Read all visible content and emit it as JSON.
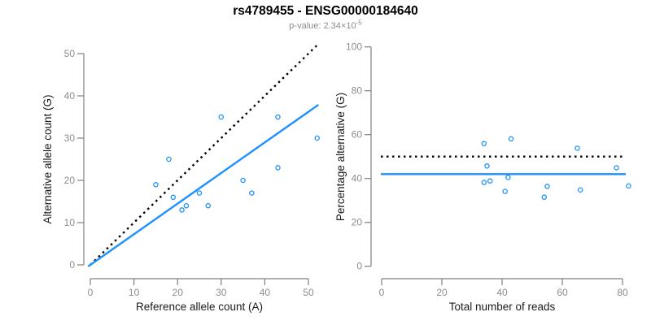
{
  "title": "rs4789455 - ENSG00000184640",
  "subtitle": {
    "prefix": "p-value: 2.34×10",
    "exponent": "-5"
  },
  "colors": {
    "accent": "#1E90FF",
    "axis": "#7f7f7f",
    "tick_label": "#8c8c8c",
    "identity": "#000000",
    "subtitle": "#8c8c8c",
    "title": "#000000"
  },
  "chart_data": [
    {
      "type": "scatter",
      "panel": "left",
      "xlabel": "Reference allele count (A)",
      "ylabel": "Alternative allele count (G)",
      "xlim": [
        0,
        52
      ],
      "ylim": [
        0,
        52
      ],
      "xticks": [
        0,
        10,
        20,
        30,
        40,
        50
      ],
      "yticks": [
        0,
        10,
        20,
        30,
        40,
        50
      ],
      "grid": false,
      "legend": null,
      "points": [
        [
          18,
          25
        ],
        [
          15,
          19
        ],
        [
          19,
          16
        ],
        [
          25,
          17
        ],
        [
          21,
          13
        ],
        [
          22,
          14
        ],
        [
          27,
          14
        ],
        [
          30,
          35
        ],
        [
          43,
          35
        ],
        [
          52,
          30
        ],
        [
          43,
          23
        ],
        [
          35,
          20
        ],
        [
          37,
          17
        ]
      ],
      "lines": [
        {
          "name": "identity-line-left",
          "style": "dotted",
          "color": "#000000",
          "from": [
            0,
            0
          ],
          "to": [
            52,
            52
          ]
        },
        {
          "name": "fit-line-left",
          "style": "solid",
          "color": "#1E90FF",
          "from": [
            -0.5,
            -0.36
          ],
          "to": [
            52.3,
            37.9
          ]
        }
      ]
    },
    {
      "type": "scatter",
      "panel": "right",
      "xlabel": "Total number of reads",
      "ylabel": "Percentage alternative (G)",
      "xlim": [
        0,
        82
      ],
      "ylim": [
        0,
        100
      ],
      "xticks": [
        0,
        20,
        40,
        60,
        80
      ],
      "yticks": [
        0,
        20,
        40,
        60,
        80,
        100
      ],
      "grid": false,
      "legend": null,
      "points": [
        [
          43,
          58.1
        ],
        [
          34,
          55.9
        ],
        [
          35,
          45.7
        ],
        [
          42,
          40.5
        ],
        [
          34,
          38.2
        ],
        [
          36,
          38.9
        ],
        [
          41,
          34.1
        ],
        [
          65,
          53.8
        ],
        [
          78,
          44.9
        ],
        [
          82,
          36.6
        ],
        [
          66,
          34.8
        ],
        [
          55,
          36.4
        ],
        [
          54,
          31.5
        ]
      ],
      "lines": [
        {
          "name": "expected-percentage-line",
          "style": "dotted",
          "color": "#000000",
          "y": 50
        },
        {
          "name": "mean-percentage-line",
          "style": "solid",
          "color": "#1E90FF",
          "y": 42
        }
      ]
    }
  ]
}
